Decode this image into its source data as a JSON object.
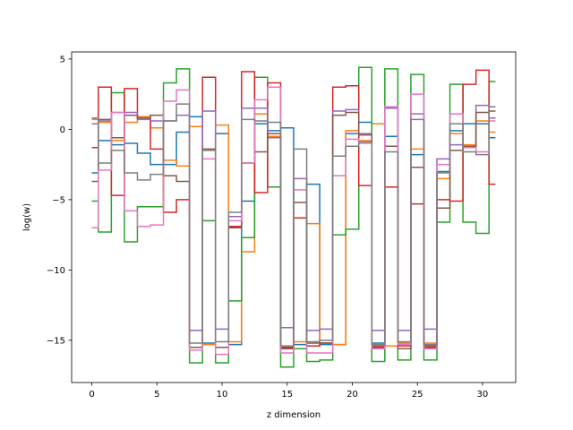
{
  "chart_data": {
    "type": "line",
    "drawstyle": "steps-mid",
    "title": "",
    "xlabel": "z dimension",
    "ylabel": "log(w)",
    "xlim": [
      -1.55,
      32.55
    ],
    "ylim": [
      -18.0,
      5.5
    ],
    "xticks": [
      0,
      5,
      10,
      15,
      20,
      25,
      30
    ],
    "yticks": [
      5,
      0,
      -5,
      -10,
      -15
    ],
    "ytick_labels": [
      "5",
      "0",
      "−5",
      "−10",
      "−15"
    ],
    "grid": false,
    "series": [
      {
        "color": "#1f77b4",
        "values": [
          -3.1,
          -0.8,
          -1.1,
          -1.0,
          -1.7,
          -2.5,
          -2.5,
          -0.2,
          0.9,
          -15.2,
          -0.3,
          -15.3,
          -5.1,
          0.4,
          -0.1,
          0.1,
          -15.3,
          -3.9,
          -15.3,
          -15.3,
          -0.3,
          0.5,
          -15.2,
          -0.5,
          -15.2,
          -1.8,
          -15.3,
          -3.0,
          -0.1,
          0.4,
          0.4,
          -0.6
        ]
      },
      {
        "color": "#ff7f0e",
        "values": [
          0.7,
          0.5,
          -0.8,
          0.5,
          0.9,
          0.1,
          -2.2,
          -2.6,
          0.2,
          -15.3,
          0.3,
          -15.1,
          -8.7,
          1.1,
          -0.5,
          -15.6,
          -15.1,
          -6.7,
          -15.2,
          -15.3,
          -0.1,
          -0.8,
          0.4,
          -15.4,
          -15.2,
          -1.4,
          -15.2,
          -3.5,
          -0.3,
          -1.1,
          0.6,
          -0.2
        ]
      },
      {
        "color": "#2ca02c",
        "values": [
          -5.1,
          -7.3,
          2.6,
          -8.0,
          -5.5,
          -5.5,
          3.3,
          4.3,
          -16.6,
          -6.5,
          -16.6,
          -12.2,
          -7.7,
          3.7,
          -4.1,
          -16.9,
          -15.6,
          -16.5,
          -16.4,
          -7.5,
          -7.1,
          4.4,
          -16.5,
          4.3,
          -16.4,
          3.9,
          -16.4,
          -6.6,
          3.2,
          -6.6,
          -7.4,
          3.4
        ]
      },
      {
        "color": "#d62728",
        "values": [
          -1.3,
          3.0,
          -4.7,
          2.9,
          0.8,
          -1.4,
          -5.9,
          -5.0,
          -15.5,
          3.7,
          -15.5,
          -6.9,
          4.1,
          -4.5,
          3.3,
          -15.5,
          -6.3,
          -15.4,
          -15.2,
          3.0,
          3.1,
          -4.0,
          -15.5,
          -4.1,
          -15.4,
          -5.3,
          -15.5,
          -5.0,
          -5.1,
          3.2,
          4.2,
          -3.9
        ]
      },
      {
        "color": "#9467bd",
        "values": [
          0.4,
          0.6,
          1.2,
          1.2,
          0.7,
          0.6,
          0.6,
          1.0,
          -14.3,
          1.3,
          -14.2,
          -6.2,
          1.5,
          1.5,
          -0.6,
          -14.1,
          -3.5,
          -14.3,
          -14.2,
          1.3,
          1.4,
          -0.3,
          -14.3,
          1.5,
          -14.3,
          1.1,
          -14.2,
          -2.1,
          -1.1,
          -1.3,
          1.7,
          0.8
        ]
      },
      {
        "color": "#8c564b",
        "values": [
          -3.7,
          0.7,
          -0.6,
          1.0,
          0.8,
          1.0,
          -3.3,
          -3.7,
          -15.5,
          -1.4,
          -15.5,
          -7.0,
          -2.4,
          -1.6,
          -0.3,
          -15.6,
          -5.2,
          -15.2,
          -15.2,
          1.0,
          1.2,
          -0.4,
          -15.4,
          -1.2,
          -15.6,
          -2.7,
          -15.4,
          -5.6,
          -1.5,
          -1.2,
          1.2,
          1.3
        ]
      },
      {
        "color": "#e377c2",
        "values": [
          -7.0,
          -2.9,
          1.2,
          -5.8,
          -6.9,
          -6.8,
          2.0,
          2.8,
          -15.7,
          -2.1,
          -16.0,
          -6.5,
          -2.4,
          2.1,
          3.0,
          -15.9,
          -4.3,
          -15.9,
          -15.9,
          -3.3,
          -0.7,
          -1.0,
          -15.6,
          1.6,
          -15.3,
          2.5,
          -15.6,
          -2.5,
          1.1,
          -1.3,
          -1.6,
          0.6
        ]
      },
      {
        "color": "#7f7f7f",
        "values": [
          0.8,
          -2.4,
          -1.5,
          -3.1,
          -3.6,
          -3.2,
          0.6,
          1.8,
          -15.2,
          -1.5,
          -15.1,
          -5.9,
          0.7,
          0.6,
          0.5,
          -15.4,
          -1.4,
          -15.1,
          -15.0,
          -1.9,
          -1.2,
          -0.9,
          -15.3,
          -1.6,
          -15.1,
          0.7,
          -15.3,
          -3.1,
          0.4,
          -1.6,
          -1.8,
          1.6
        ]
      }
    ]
  }
}
